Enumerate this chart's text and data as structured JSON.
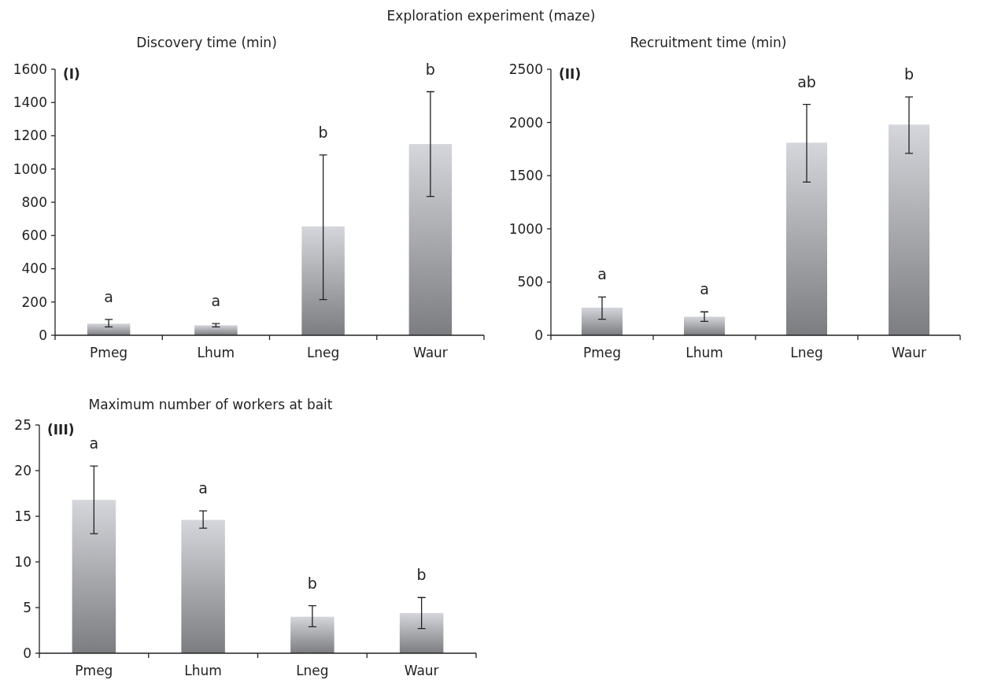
{
  "chart_data": [
    {
      "type": "bar",
      "title": "Exploration experiment (maze)",
      "subtitle": "Discovery time (min)",
      "categories": [
        "Pmeg",
        "Lhum",
        "Lneg",
        "Waur"
      ],
      "series": [
        {
          "color": "#9a9b9f",
          "values": [
            70,
            60,
            655,
            1150
          ],
          "errors": [
            [
              50,
              95
            ],
            [
              50,
              70
            ],
            [
              215,
              1085
            ],
            [
              835,
              1465
            ]
          ]
        }
      ],
      "ylim": [
        0,
        1600
      ],
      "yticks": [
        0,
        200,
        400,
        600,
        800,
        1000,
        1200,
        1400,
        1600
      ],
      "grid": false,
      "annotations": [
        "(I)",
        "a",
        "a",
        "b",
        "b"
      ]
    },
    {
      "type": "bar",
      "title": "Recruitment time (min)",
      "categories": [
        "Pmeg",
        "Lhum",
        "Lneg",
        "Waur"
      ],
      "series": [
        {
          "color": "#9a9b9f",
          "values": [
            260,
            175,
            1810,
            1980
          ],
          "errors": [
            [
              150,
              360
            ],
            [
              130,
              220
            ],
            [
              1440,
              2170
            ],
            [
              1710,
              2240
            ]
          ]
        }
      ],
      "ylim": [
        0,
        2500
      ],
      "yticks": [
        0,
        500,
        1000,
        1500,
        2000,
        2500
      ],
      "grid": false,
      "annotations": [
        "(II)",
        "a",
        "a",
        "ab",
        "b"
      ]
    },
    {
      "type": "bar",
      "title": "Maximum number of workers at bait",
      "categories": [
        "Pmeg",
        "Lhum",
        "Lneg",
        "Waur"
      ],
      "series": [
        {
          "color": "#9a9b9f",
          "values": [
            16.8,
            14.6,
            4.0,
            4.4
          ],
          "errors": [
            [
              13.1,
              20.5
            ],
            [
              13.7,
              15.6
            ],
            [
              2.9,
              5.2
            ],
            [
              2.7,
              6.1
            ]
          ]
        }
      ],
      "ylim": [
        0,
        25
      ],
      "yticks": [
        0,
        5,
        10,
        15,
        20,
        25
      ],
      "grid": false,
      "annotations": [
        "(III)",
        "a",
        "a",
        "b",
        "b"
      ]
    }
  ]
}
